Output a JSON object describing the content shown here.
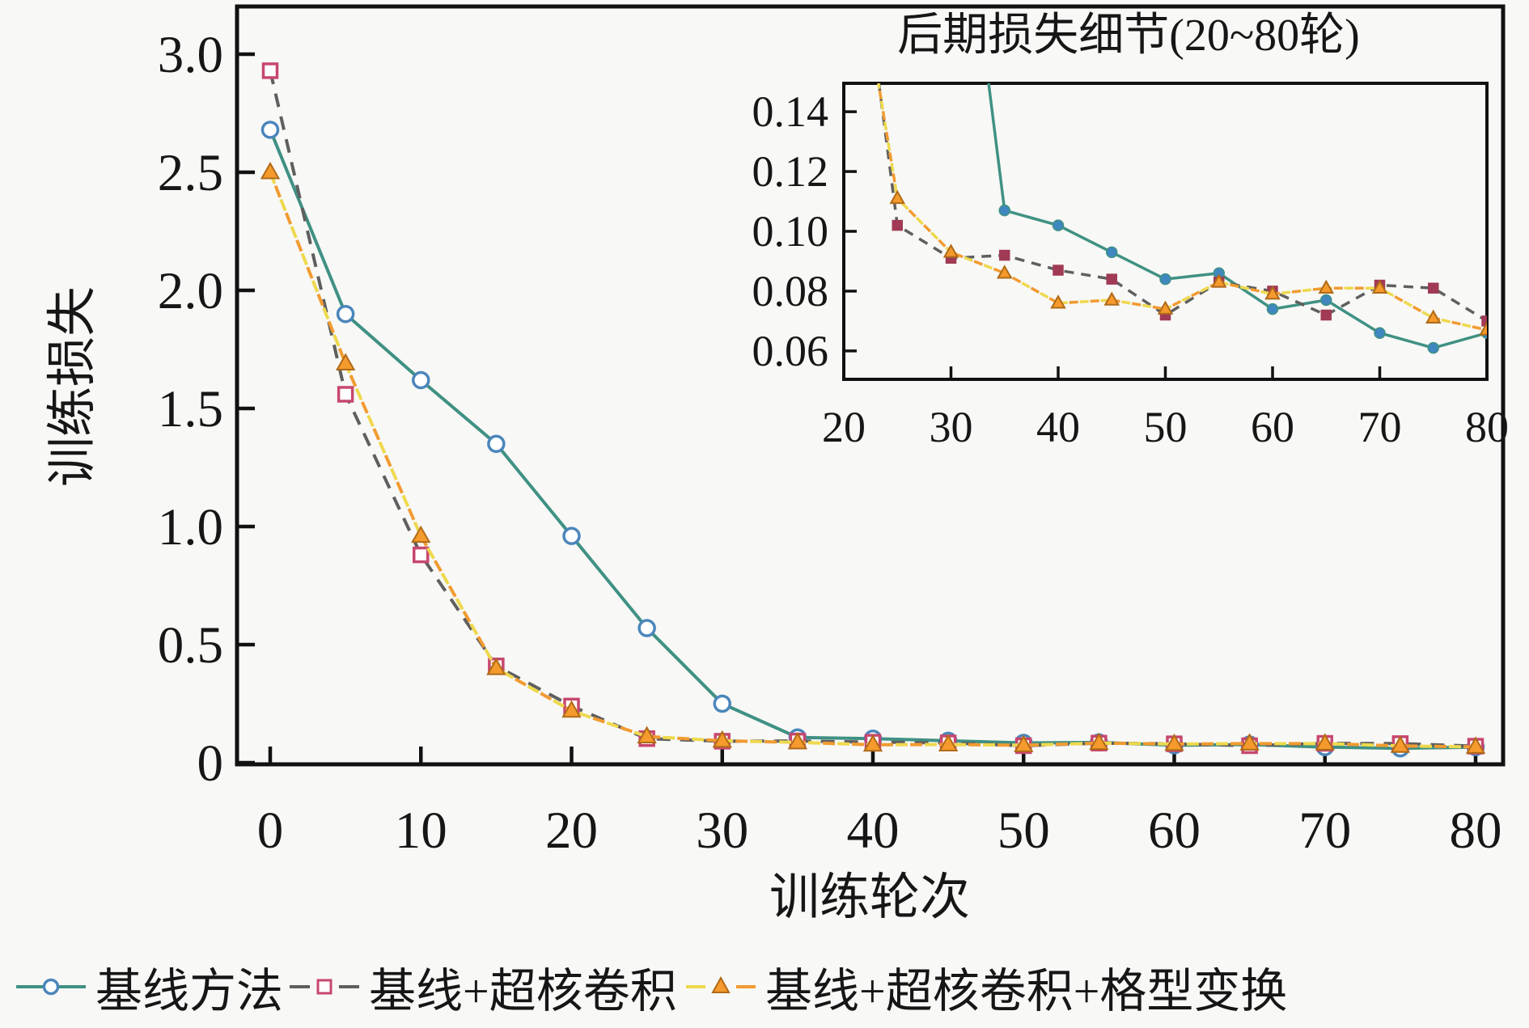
{
  "figure": {
    "bg_color": "#f8f8f6",
    "text_color": "#161616",
    "frame_color": "#111111"
  },
  "chart_data": [
    {
      "id": "main",
      "type": "line",
      "title": "",
      "xlabel": "训练轮次",
      "ylabel": "训练损失",
      "xlim": [
        -2.2,
        81.8
      ],
      "ylim": [
        0,
        3.2
      ],
      "grid": false,
      "x": [
        0,
        5,
        10,
        15,
        20,
        25,
        30,
        35,
        40,
        45,
        50,
        55,
        60,
        65,
        70,
        75,
        80
      ],
      "xticks": [
        0,
        10,
        20,
        30,
        40,
        50,
        60,
        70,
        80
      ],
      "xtick_labels": [
        "0",
        "10",
        "20",
        "30",
        "40",
        "50",
        "60",
        "70",
        "80"
      ],
      "yticks": [
        3.0,
        2.5,
        2.0,
        1.5,
        1.0,
        0.5,
        0
      ],
      "ytick_labels": [
        "3.0",
        "2.5",
        "2.0",
        "1.5",
        "1.0",
        "0.5",
        "0"
      ],
      "series": [
        {
          "name": "基线方法",
          "style": "solid-circle",
          "line_color": "#3f9183",
          "marker_edge": "#4b86bb",
          "marker_fill": "#ffffff",
          "inset_marker_fill": "#3f87bf",
          "values": [
            2.68,
            1.9,
            1.62,
            1.35,
            0.96,
            0.57,
            0.25,
            0.107,
            0.102,
            0.093,
            0.084,
            0.086,
            0.074,
            0.077,
            0.066,
            0.061,
            0.066
          ]
        },
        {
          "name": "基线+超核卷积",
          "style": "dashed-square",
          "line_color": "#5f5f5f",
          "marker_edge": "#c7486f",
          "marker_fill": "#ffffff",
          "inset_marker_fill": "#a03a55",
          "values": [
            2.93,
            1.56,
            0.88,
            0.41,
            0.24,
            0.102,
            0.091,
            0.092,
            0.087,
            0.084,
            0.072,
            0.083,
            0.08,
            0.072,
            0.082,
            0.081,
            0.07
          ]
        },
        {
          "name": "基线+超核卷积+格型变换",
          "style": "dashdot-triangle",
          "line_color": "#f19b31",
          "line_color2": "#eed94e",
          "marker_edge": "#b06a18",
          "marker_fill": "#f59a2c",
          "inset_marker_fill": "#f59a2c",
          "values": [
            2.5,
            1.69,
            0.96,
            0.4,
            0.22,
            0.111,
            0.093,
            0.086,
            0.076,
            0.077,
            0.074,
            0.083,
            0.079,
            0.081,
            0.081,
            0.071,
            0.067
          ]
        }
      ]
    },
    {
      "id": "inset",
      "type": "line",
      "title": "后期损失细节(20~80轮)",
      "xlabel": "",
      "ylabel": "",
      "xlim": [
        20,
        80
      ],
      "ylim": [
        0.0505,
        0.1495
      ],
      "grid": false,
      "x": [
        20,
        25,
        30,
        35,
        40,
        45,
        50,
        55,
        60,
        65,
        70,
        75,
        80
      ],
      "xticks": [
        20,
        30,
        40,
        50,
        60,
        70,
        80
      ],
      "xtick_labels": [
        "20",
        "30",
        "40",
        "50",
        "60",
        "70",
        "80"
      ],
      "yticks": [
        0.06,
        0.08,
        0.1,
        0.12,
        0.14
      ],
      "ytick_labels": [
        "0.06",
        "0.08",
        "0.10",
        "0.12",
        "0.14"
      ],
      "series": [
        {
          "name": "基线方法",
          "style": "solid-circle",
          "values": [
            0.96,
            0.57,
            0.25,
            0.107,
            0.102,
            0.093,
            0.084,
            0.086,
            0.074,
            0.077,
            0.066,
            0.061,
            0.066
          ]
        },
        {
          "name": "基线+超核卷积",
          "style": "dashed-square",
          "values": [
            0.24,
            0.102,
            0.091,
            0.092,
            0.087,
            0.084,
            0.072,
            0.083,
            0.08,
            0.072,
            0.082,
            0.081,
            0.07
          ]
        },
        {
          "name": "基线+超核卷积+格型变换",
          "style": "dashdot-triangle",
          "values": [
            0.22,
            0.111,
            0.093,
            0.086,
            0.076,
            0.077,
            0.074,
            0.083,
            0.079,
            0.081,
            0.081,
            0.071,
            0.067
          ]
        }
      ]
    }
  ],
  "legend": {
    "items": [
      {
        "label": "基线方法"
      },
      {
        "label": "基线+超核卷积"
      },
      {
        "label": "基线+超核卷积+格型变换"
      }
    ]
  }
}
